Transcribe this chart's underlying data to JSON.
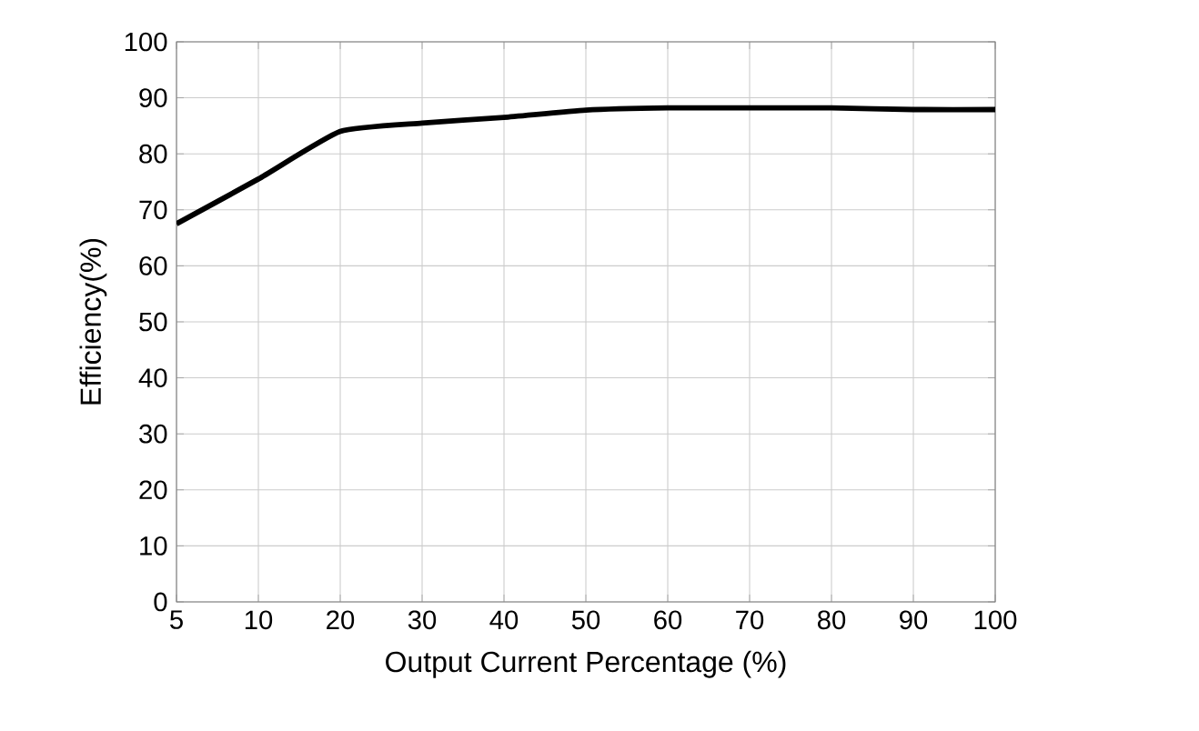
{
  "chart_data": {
    "type": "line",
    "xlabel": "Output Current Percentage (%)",
    "ylabel": "Efficiency(%)",
    "categories": [
      "5",
      "10",
      "20",
      "30",
      "40",
      "50",
      "60",
      "70",
      "80",
      "90",
      "100"
    ],
    "series": [
      {
        "color": "#000000",
        "values": [
          67.5,
          75.5,
          84,
          85.5,
          86.5,
          87.8,
          88.2,
          88.2,
          88.2,
          87.9,
          87.9
        ]
      }
    ],
    "ylim": [
      0,
      100
    ],
    "yticks": [
      0,
      10,
      20,
      30,
      40,
      50,
      60,
      70,
      80,
      90,
      100
    ],
    "grid": true,
    "line_style": "solid",
    "marker": "none"
  }
}
